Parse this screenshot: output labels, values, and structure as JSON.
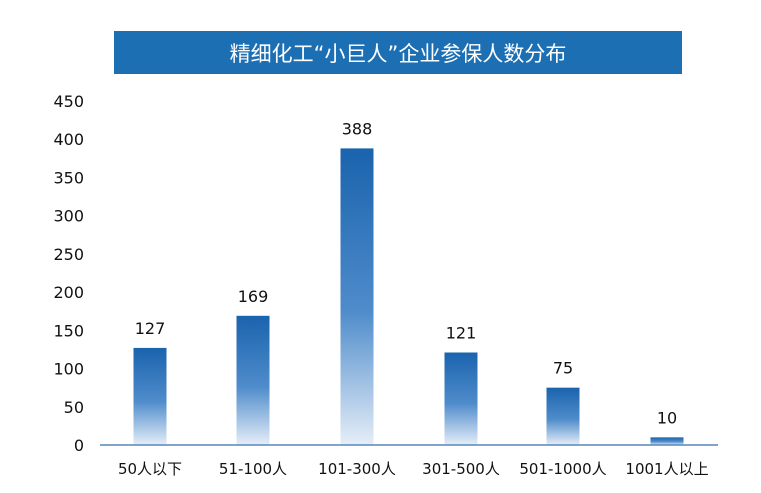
{
  "chart_data": {
    "type": "bar",
    "title": "精细化工“小巨人”企业参保人数分布",
    "categories": [
      "50人以下",
      "51-100人",
      "101-300人",
      "301-500人",
      "501-1000人",
      "1001人以上"
    ],
    "values": [
      127,
      169,
      388,
      121,
      75,
      10
    ],
    "ylim": [
      0,
      450
    ],
    "yticks": [
      0,
      50,
      100,
      150,
      200,
      250,
      300,
      350,
      400,
      450
    ],
    "grid": false,
    "legend": "none",
    "colors": {
      "title_bg": "#1d6fb4",
      "bar_top": "#1a63ad",
      "bar_bottom": "#e6eef8",
      "axis": "#5a86b8"
    }
  }
}
